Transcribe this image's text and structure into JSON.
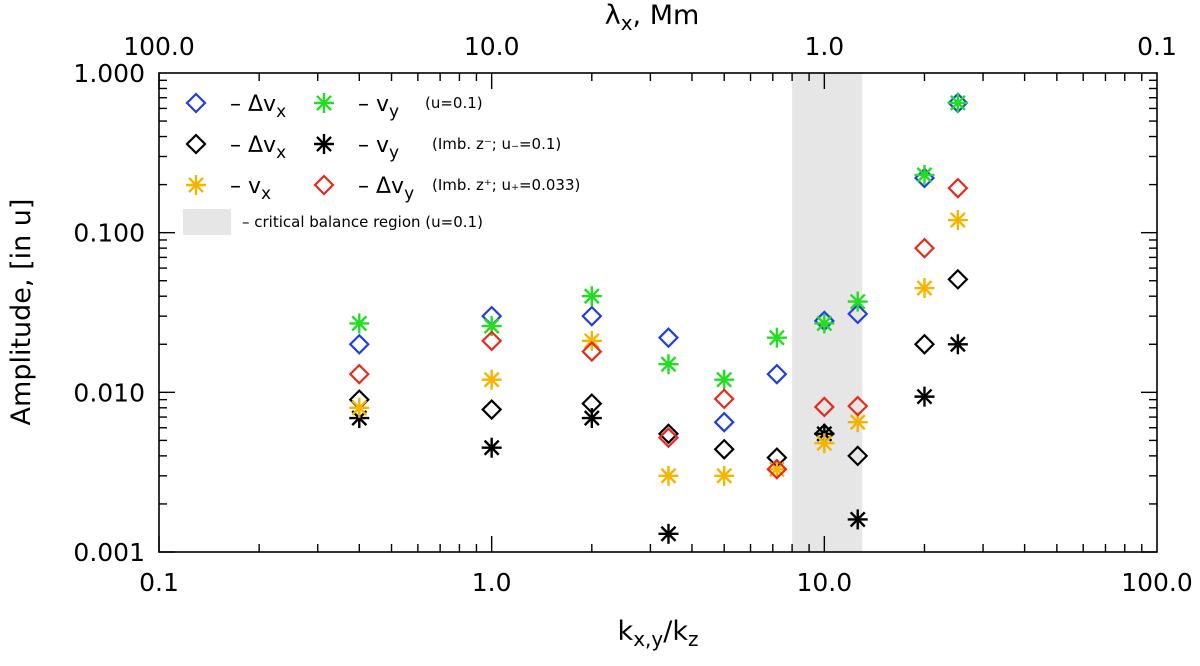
{
  "chart_data": {
    "type": "scatter",
    "xscale": "log",
    "yscale": "log",
    "xlim": [
      0.1,
      100.0
    ],
    "ylim": [
      0.001,
      1.0
    ],
    "xlabel": "k_{x,y}/k_z",
    "xlabel_parts": {
      "k1": "k",
      "sub1": "x,y",
      "slash": "/k",
      "sub2": "z"
    },
    "ylabel": "Amplitude, [in u]",
    "top_axis": {
      "label_parts": {
        "lambda": "λ",
        "sub": "x",
        "unit": ", Mm"
      },
      "ticks": [
        {
          "k": 0.1,
          "label": "100.0"
        },
        {
          "k": 1.0,
          "label": "10.0"
        },
        {
          "k": 10.0,
          "label": "1.0"
        },
        {
          "k": 100.0,
          "label": "0.1"
        }
      ]
    },
    "x_ticks": [
      {
        "value": 0.1,
        "label": "0.1"
      },
      {
        "value": 1.0,
        "label": "1.0"
      },
      {
        "value": 10.0,
        "label": "10.0"
      },
      {
        "value": 100.0,
        "label": "100.0"
      }
    ],
    "y_ticks": [
      {
        "value": 0.001,
        "label": "0.001"
      },
      {
        "value": 0.01,
        "label": "0.010"
      },
      {
        "value": 0.1,
        "label": "0.100"
      },
      {
        "value": 1.0,
        "label": "1.000"
      }
    ],
    "shaded_region": {
      "x": [
        8.0,
        13.0
      ],
      "color": "#e6e6e6",
      "label": "critical balance region (u=0.1)"
    },
    "series": [
      {
        "name": "blue_dvx",
        "marker": "diamond",
        "color": "#1f3fe0",
        "points": [
          [
            0.4,
            0.02
          ],
          [
            1.0,
            0.03
          ],
          [
            2.0,
            0.03
          ],
          [
            3.4,
            0.022
          ],
          [
            5.0,
            0.0065
          ],
          [
            7.2,
            0.013
          ],
          [
            10.0,
            0.028
          ],
          [
            12.6,
            0.031
          ],
          [
            20.0,
            0.22
          ],
          [
            25.2,
            0.65
          ]
        ]
      },
      {
        "name": "green_vy",
        "marker": "asterisk",
        "color": "#22dd22",
        "points": [
          [
            0.4,
            0.027
          ],
          [
            1.0,
            0.026
          ],
          [
            2.0,
            0.04
          ],
          [
            3.4,
            0.015
          ],
          [
            5.0,
            0.012
          ],
          [
            7.2,
            0.022
          ],
          [
            10.0,
            0.027
          ],
          [
            12.6,
            0.037
          ],
          [
            20.0,
            0.23
          ],
          [
            25.2,
            0.65
          ]
        ]
      },
      {
        "name": "black_dvx",
        "marker": "diamond",
        "color": "#000000",
        "points": [
          [
            0.4,
            0.009
          ],
          [
            1.0,
            0.0078
          ],
          [
            2.0,
            0.0085
          ],
          [
            3.4,
            0.0055
          ],
          [
            5.0,
            0.0044
          ],
          [
            7.2,
            0.0039
          ],
          [
            10.0,
            0.0055
          ],
          [
            12.6,
            0.004
          ],
          [
            20.0,
            0.02
          ],
          [
            25.2,
            0.051
          ]
        ]
      },
      {
        "name": "black_vy",
        "marker": "asterisk",
        "color": "#000000",
        "points": [
          [
            0.4,
            0.0069
          ],
          [
            1.0,
            0.0045
          ],
          [
            2.0,
            0.0069
          ],
          [
            3.4,
            0.0013
          ],
          [
            10.0,
            0.0055
          ],
          [
            12.6,
            0.0016
          ],
          [
            20.0,
            0.0094
          ],
          [
            25.2,
            0.02
          ]
        ]
      },
      {
        "name": "orange_vx",
        "marker": "asterisk",
        "color": "#f5b400",
        "points": [
          [
            0.4,
            0.008
          ],
          [
            1.0,
            0.012
          ],
          [
            2.0,
            0.021
          ],
          [
            3.4,
            0.003
          ],
          [
            5.0,
            0.003
          ],
          [
            7.2,
            0.0033
          ],
          [
            10.0,
            0.0048
          ],
          [
            12.6,
            0.0065
          ],
          [
            20.0,
            0.045
          ],
          [
            25.2,
            0.12
          ]
        ]
      },
      {
        "name": "red_dvy",
        "marker": "diamond",
        "color": "#e82a1a",
        "points": [
          [
            0.4,
            0.013
          ],
          [
            1.0,
            0.021
          ],
          [
            2.0,
            0.018
          ],
          [
            3.4,
            0.0052
          ],
          [
            5.0,
            0.0091
          ],
          [
            7.2,
            0.0033
          ],
          [
            10.0,
            0.0081
          ],
          [
            12.6,
            0.0082
          ],
          [
            20.0,
            0.08
          ],
          [
            25.2,
            0.19
          ]
        ]
      }
    ],
    "legend": {
      "position": "top-left",
      "rows": [
        {
          "marker1": "diamond",
          "color1": "#1f3fe0",
          "label1": "Δv",
          "sub1": "x",
          "marker2": "asterisk",
          "color2": "#22dd22",
          "label2": "v",
          "sub2": "y",
          "note": "(u=0.1)"
        },
        {
          "marker1": "diamond",
          "color1": "#000000",
          "label1": "Δv",
          "sub1": "x",
          "marker2": "asterisk",
          "color2": "#000000",
          "label2": "v",
          "sub2": "y",
          "note": "(Imb.  z⁻; u₋=0.1)"
        },
        {
          "marker1": "asterisk",
          "color1": "#f5b400",
          "label1": "v",
          "sub1": "x",
          "marker2": "diamond",
          "color2": "#e82a1a",
          "label2": "Δv",
          "sub2": "y",
          "note": "(Imb.  z⁺; u₊=0.033)"
        }
      ],
      "region_label": "critical balance region (u=0.1)",
      "dash": "–"
    }
  }
}
